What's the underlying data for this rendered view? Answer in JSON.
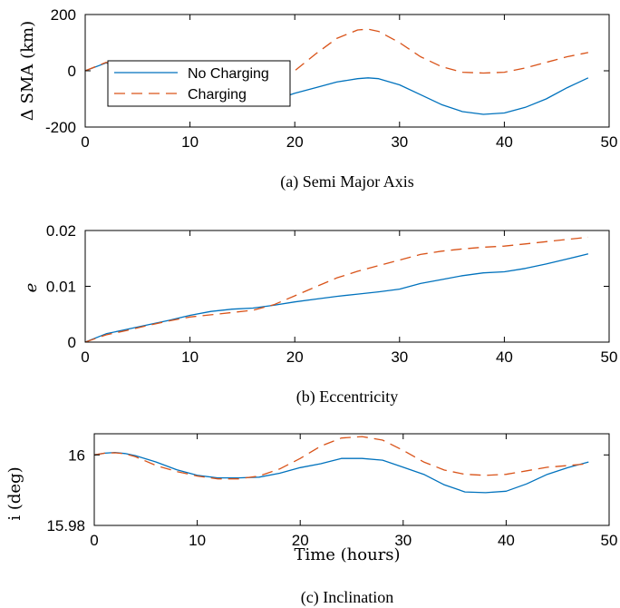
{
  "chart_data": [
    {
      "type": "line",
      "caption": "(a)  Semi Major Axis",
      "ylabel": "Δ SMA (km)",
      "xlabel": "",
      "xlim": [
        0,
        50
      ],
      "ylim": [
        -200,
        200
      ],
      "xticks": [
        "0",
        "10",
        "20",
        "30",
        "40",
        "50"
      ],
      "yticks": [
        "-200",
        "0",
        "200"
      ],
      "grid": false,
      "legend": {
        "placement": "top-left",
        "entries": [
          "No Charging",
          "Charging"
        ]
      },
      "series": [
        {
          "name": "No Charging",
          "color": "#0072BD",
          "dash": "solid",
          "x": [
            0,
            2,
            4,
            6,
            8,
            10,
            12,
            14,
            16,
            18,
            20,
            22,
            24,
            26,
            27,
            28,
            30,
            32,
            34,
            36,
            38,
            40,
            42,
            44,
            46,
            48
          ],
          "y": [
            0,
            28,
            5,
            -35,
            -75,
            -100,
            -115,
            -123,
            -120,
            -105,
            -80,
            -60,
            -40,
            -28,
            -25,
            -28,
            -50,
            -85,
            -120,
            -145,
            -155,
            -150,
            -130,
            -100,
            -60,
            -25
          ]
        },
        {
          "name": "Charging",
          "color": "#D95319",
          "dash": "dashed",
          "x": [
            0,
            2,
            4,
            6,
            8,
            10,
            12,
            14,
            16,
            18,
            20,
            22,
            24,
            26,
            27,
            28,
            30,
            32,
            34,
            36,
            38,
            40,
            42,
            44,
            46,
            48
          ],
          "y": [
            0,
            30,
            10,
            -25,
            -60,
            -85,
            -95,
            -90,
            -70,
            -40,
            0,
            60,
            115,
            145,
            148,
            140,
            100,
            50,
            15,
            -5,
            -8,
            -5,
            10,
            30,
            50,
            65
          ]
        }
      ]
    },
    {
      "type": "line",
      "caption": "(b)  Eccentricity",
      "ylabel": "e",
      "xlabel": "",
      "xlim": [
        0,
        50
      ],
      "ylim": [
        0,
        0.02
      ],
      "xticks": [
        "0",
        "10",
        "20",
        "30",
        "40",
        "50"
      ],
      "yticks": [
        "0",
        "0.01",
        "0.02"
      ],
      "grid": false,
      "series": [
        {
          "name": "No Charging",
          "color": "#0072BD",
          "dash": "solid",
          "x": [
            0,
            2,
            4,
            6,
            8,
            10,
            12,
            14,
            16,
            18,
            20,
            22,
            24,
            26,
            28,
            30,
            32,
            34,
            36,
            38,
            40,
            42,
            44,
            46,
            48
          ],
          "y": [
            0,
            0.0015,
            0.0023,
            0.0031,
            0.0039,
            0.0048,
            0.0055,
            0.0059,
            0.0061,
            0.0066,
            0.0072,
            0.0077,
            0.0082,
            0.0086,
            0.009,
            0.0095,
            0.0105,
            0.0112,
            0.0119,
            0.0124,
            0.0126,
            0.0132,
            0.014,
            0.0149,
            0.0158
          ]
        },
        {
          "name": "Charging",
          "color": "#D95319",
          "dash": "dashed",
          "x": [
            0,
            2,
            4,
            6,
            8,
            10,
            12,
            14,
            16,
            18,
            20,
            22,
            24,
            26,
            28,
            30,
            32,
            34,
            36,
            38,
            40,
            42,
            44,
            46,
            48
          ],
          "y": [
            0,
            0.0013,
            0.0021,
            0.003,
            0.0038,
            0.0045,
            0.0049,
            0.0053,
            0.0057,
            0.0067,
            0.0083,
            0.0099,
            0.0115,
            0.0127,
            0.0137,
            0.0147,
            0.0157,
            0.0163,
            0.0167,
            0.017,
            0.0172,
            0.0176,
            0.018,
            0.0184,
            0.0188
          ]
        }
      ]
    },
    {
      "type": "line",
      "caption": "(c)  Inclination",
      "ylabel": "i (deg)",
      "xlabel": "Time (hours)",
      "xlim": [
        0,
        50
      ],
      "ylim": [
        15.98,
        16.006
      ],
      "xticks": [
        "0",
        "10",
        "20",
        "30",
        "40",
        "50"
      ],
      "yticks": [
        "15.98",
        "16"
      ],
      "grid": false,
      "series": [
        {
          "name": "No Charging",
          "color": "#0072BD",
          "dash": "solid",
          "x": [
            0,
            1,
            2,
            3,
            4,
            6,
            8,
            10,
            12,
            14,
            16,
            18,
            20,
            22,
            24,
            26,
            28,
            30,
            32,
            34,
            36,
            38,
            40,
            42,
            44,
            46,
            48
          ],
          "y": [
            16.0,
            16.0005,
            16.0007,
            16.0004,
            15.9998,
            15.998,
            15.9958,
            15.9942,
            15.9935,
            15.9935,
            15.9937,
            15.9948,
            15.9964,
            15.9975,
            15.999,
            15.999,
            15.9985,
            15.9965,
            15.9945,
            15.9915,
            15.9895,
            15.9893,
            15.9897,
            15.9918,
            15.9945,
            15.9964,
            15.998
          ]
        },
        {
          "name": "Charging",
          "color": "#D95319",
          "dash": "dashed",
          "x": [
            0,
            1,
            2,
            3,
            4,
            6,
            8,
            10,
            12,
            14,
            16,
            18,
            20,
            22,
            24,
            26,
            28,
            30,
            32,
            34,
            36,
            38,
            40,
            42,
            44,
            46,
            48
          ],
          "y": [
            16.0,
            16.0005,
            16.0006,
            16.0003,
            15.9995,
            15.997,
            15.9953,
            15.994,
            15.9932,
            15.9932,
            15.994,
            15.996,
            15.999,
            16.0025,
            16.0048,
            16.0052,
            16.0042,
            16.0013,
            15.998,
            15.9957,
            15.9945,
            15.9942,
            15.9945,
            15.9955,
            15.9965,
            15.997,
            15.9975
          ]
        }
      ]
    }
  ]
}
